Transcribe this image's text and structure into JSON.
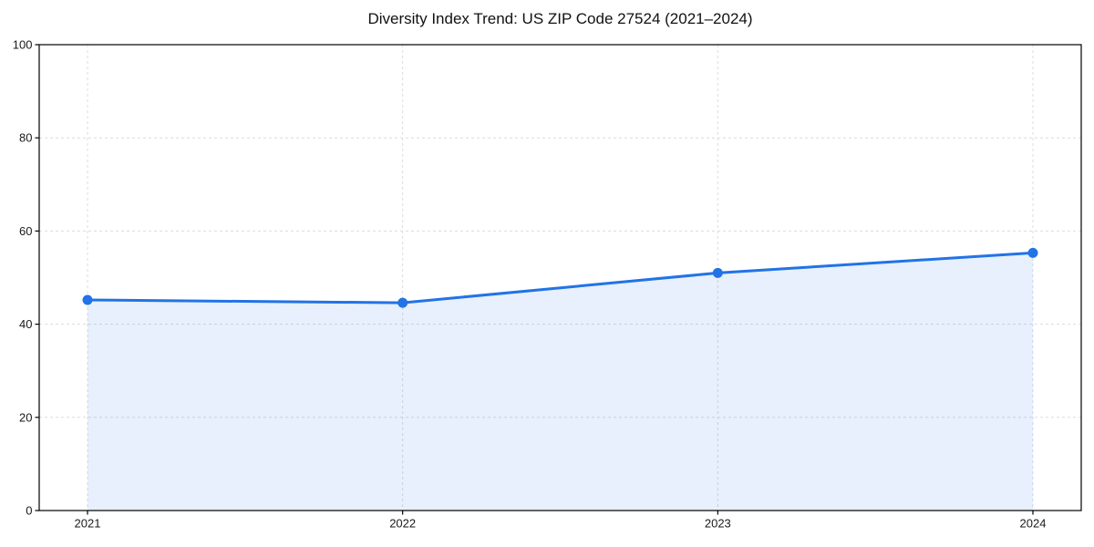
{
  "chart_data": {
    "type": "line",
    "title": "Diversity Index Trend: US ZIP Code 27524 (2021–2024)",
    "categories": [
      "2021",
      "2022",
      "2023",
      "2024"
    ],
    "series": [
      {
        "name": "Diversity Index",
        "values": [
          45.2,
          44.6,
          51.0,
          55.3
        ]
      }
    ],
    "xlabel": "",
    "ylabel": "",
    "ylim": [
      0,
      100
    ],
    "yticks": [
      0,
      20,
      40,
      60,
      80,
      100
    ],
    "grid": true,
    "legend": "none",
    "area_fill_to_zero": true,
    "style": {
      "line_color": "#2273e6",
      "marker_color": "#2273e6",
      "area_fill_color": "rgba(34,115,230,0.11)",
      "grid_color": "#dcdcdc",
      "spine_color": "#000000",
      "tick_label_color": "#1a1a1a",
      "background_color": "#ffffff"
    }
  }
}
